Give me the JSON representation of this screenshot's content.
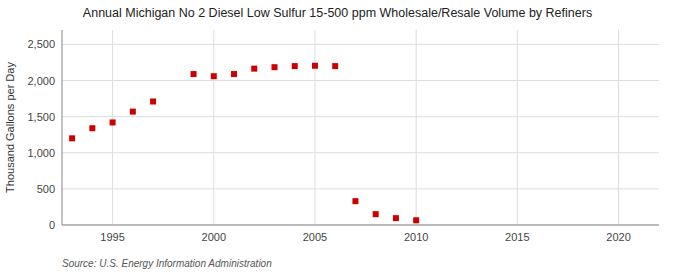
{
  "chart_data": {
    "type": "scatter",
    "title": "Annual Michigan No 2 Diesel Low Sulfur 15-500 ppm Wholesale/Resale Volume by Refiners",
    "ylabel": "Thousand Gallons per Day",
    "source": "Source: U.S. Energy Information Administration",
    "x": [
      1993,
      1994,
      1995,
      1996,
      1997,
      1999,
      2000,
      2001,
      2002,
      2003,
      2004,
      2005,
      2006,
      2007,
      2008,
      2009,
      2010
    ],
    "values": [
      1200,
      1340,
      1420,
      1570,
      1710,
      2090,
      2060,
      2090,
      2165,
      2185,
      2200,
      2205,
      2200,
      330,
      150,
      95,
      65
    ],
    "color": "#cc0000",
    "marker": "square",
    "xlim": [
      1992.5,
      2022
    ],
    "ylim": [
      0,
      2700
    ],
    "xticks": [
      1995,
      2000,
      2005,
      2010,
      2015,
      2020
    ],
    "yticks": [
      0,
      500,
      {
        "value": 1000,
        "label": "1,000"
      },
      {
        "value": 1500,
        "label": "1,500"
      },
      {
        "value": 2000,
        "label": "2,000"
      },
      {
        "value": 2500,
        "label": "2,500"
      }
    ],
    "grid": true
  }
}
